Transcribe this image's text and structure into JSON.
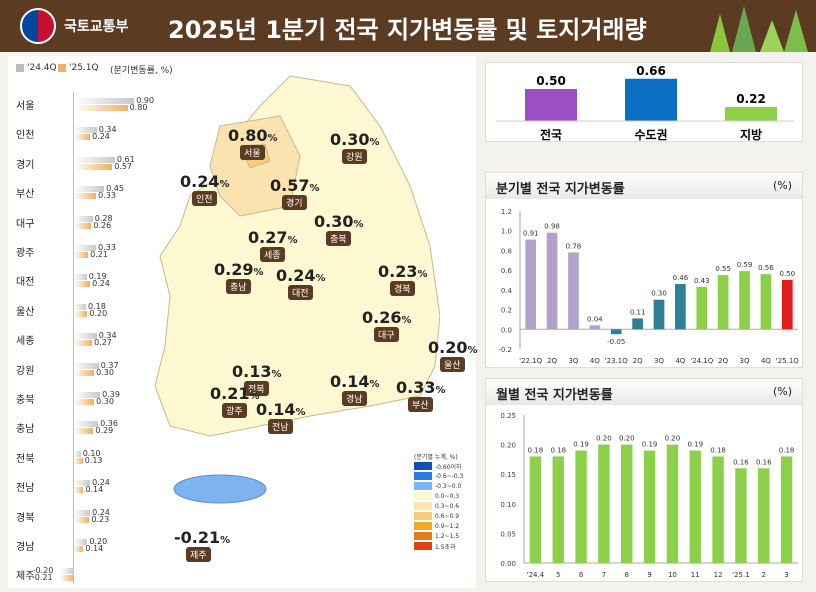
{
  "header": {
    "org": "국토교통부",
    "title": "2025년 1분기 전국 지가변동률 및 토지거래량"
  },
  "left_legend": {
    "series_a": "'24.4Q",
    "series_b": "'25.1Q",
    "unit": "(분기변동률, %)"
  },
  "colors": {
    "series_a": "#c8c8c8",
    "series_b": "#f0b060",
    "purple": "#9b4fc1",
    "blue": "#0a6fc2",
    "green": "#8cd04a",
    "teal": "#2f7f97",
    "red": "#e21b1b",
    "lavender": "#b2a1c9"
  },
  "regions": [
    {
      "name": "서울",
      "a": 0.9,
      "b": 0.8
    },
    {
      "name": "인천",
      "a": 0.34,
      "b": 0.24
    },
    {
      "name": "경기",
      "a": 0.61,
      "b": 0.57
    },
    {
      "name": "부산",
      "a": 0.45,
      "b": 0.33
    },
    {
      "name": "대구",
      "a": 0.28,
      "b": 0.26
    },
    {
      "name": "광주",
      "a": 0.33,
      "b": 0.21
    },
    {
      "name": "대전",
      "a": 0.19,
      "b": 0.24
    },
    {
      "name": "울산",
      "a": 0.18,
      "b": 0.2
    },
    {
      "name": "세종",
      "a": 0.34,
      "b": 0.27
    },
    {
      "name": "강원",
      "a": 0.37,
      "b": 0.3
    },
    {
      "name": "충북",
      "a": 0.39,
      "b": 0.3
    },
    {
      "name": "충남",
      "a": 0.36,
      "b": 0.29
    },
    {
      "name": "전북",
      "a": 0.1,
      "b": 0.13
    },
    {
      "name": "전남",
      "a": 0.24,
      "b": 0.14
    },
    {
      "name": "경북",
      "a": 0.24,
      "b": 0.23
    },
    {
      "name": "경남",
      "a": 0.2,
      "b": 0.14
    },
    {
      "name": "제주",
      "a": -0.2,
      "b": -0.21
    }
  ],
  "map_labels": [
    {
      "region": "서울",
      "value": "0.80",
      "unit": "%"
    },
    {
      "region": "강원",
      "value": "0.30",
      "unit": "%"
    },
    {
      "region": "인천",
      "value": "0.24",
      "unit": "%"
    },
    {
      "region": "경기",
      "value": "0.57",
      "unit": "%"
    },
    {
      "region": "충북",
      "value": "0.30",
      "unit": "%"
    },
    {
      "region": "세종",
      "value": "0.27",
      "unit": "%"
    },
    {
      "region": "충남",
      "value": "0.29",
      "unit": "%"
    },
    {
      "region": "대전",
      "value": "0.24",
      "unit": "%"
    },
    {
      "region": "경북",
      "value": "0.23",
      "unit": "%"
    },
    {
      "region": "대구",
      "value": "0.26",
      "unit": "%"
    },
    {
      "region": "울산",
      "value": "0.20",
      "unit": "%"
    },
    {
      "region": "전북",
      "value": "0.13",
      "unit": "%"
    },
    {
      "region": "경남",
      "value": "0.14",
      "unit": "%"
    },
    {
      "region": "부산",
      "value": "0.33",
      "unit": "%"
    },
    {
      "region": "광주",
      "value": "0.21",
      "unit": "%"
    },
    {
      "region": "전남",
      "value": "0.14",
      "unit": "%"
    },
    {
      "region": "제주",
      "value": "-0.21",
      "unit": "%"
    }
  ],
  "map_legend": {
    "title": "(분기별 누계, %)",
    "items": [
      {
        "label": "-0.60이하",
        "color": "#1450b4"
      },
      {
        "label": "-0.6~-0.3",
        "color": "#2a7be6"
      },
      {
        "label": "-0.3~0.0",
        "color": "#7db3f0"
      },
      {
        "label": "0.0~0.3",
        "color": "#fdf7d2"
      },
      {
        "label": "0.3~0.6",
        "color": "#fbe3b0"
      },
      {
        "label": "0.6~0.9",
        "color": "#f7ca7c"
      },
      {
        "label": "0.9~1.2",
        "color": "#f3a928"
      },
      {
        "label": "1.2~1.5",
        "color": "#e67b1e"
      },
      {
        "label": "1.5초과",
        "color": "#e0401a"
      }
    ]
  },
  "chart_data": [
    {
      "type": "bar",
      "categories": [
        "전국",
        "수도권",
        "지방"
      ],
      "values": [
        0.5,
        0.66,
        0.22
      ],
      "colors": [
        "#9b4fc1",
        "#0a6fc2",
        "#8cd04a"
      ]
    },
    {
      "type": "bar",
      "title": "분기별 전국 지가변동률",
      "unit": "(%)",
      "categories": [
        "'22.1Q",
        "2Q",
        "3Q",
        "4Q",
        "'23.1Q",
        "2Q",
        "3Q",
        "4Q",
        "'24.1Q",
        "2Q",
        "3Q",
        "4Q",
        "'25.1Q"
      ],
      "values": [
        0.91,
        0.98,
        0.78,
        0.04,
        -0.05,
        0.11,
        0.3,
        0.46,
        0.43,
        0.55,
        0.59,
        0.56,
        0.5
      ],
      "labels": [
        "0.91",
        "0.98",
        "0.78",
        "0.04",
        "-0.05",
        "0.11",
        "0.30",
        "0.46",
        "0.43",
        "0.55",
        "0.59",
        "0.56",
        "0.50"
      ],
      "ylim": [
        -0.2,
        1.2
      ],
      "yticks": [
        "-0.2",
        "0.0",
        "0.2",
        "0.4",
        "0.6",
        "0.8",
        "1.0",
        "1.2"
      ],
      "colors": [
        "#b2a1c9",
        "#b2a1c9",
        "#b2a1c9",
        "#b2a1c9",
        "#2f7f97",
        "#2f7f97",
        "#2f7f97",
        "#2f7f97",
        "#8cd04a",
        "#8cd04a",
        "#8cd04a",
        "#8cd04a",
        "#e21b1b"
      ]
    },
    {
      "type": "bar",
      "title": "월별 전국 지가변동률",
      "unit": "(%)",
      "categories": [
        "'24.4",
        "5",
        "6",
        "7",
        "8",
        "9",
        "10",
        "11",
        "12",
        "'25.1",
        "2",
        "3"
      ],
      "values": [
        0.18,
        0.18,
        0.19,
        0.2,
        0.2,
        0.19,
        0.2,
        0.19,
        0.18,
        0.16,
        0.16,
        0.18
      ],
      "labels": [
        "0.18",
        "0.18",
        "0.19",
        "0.20",
        "0.20",
        "0.19",
        "0.20",
        "0.19",
        "0.18",
        "0.16",
        "0.16",
        "0.18"
      ],
      "ylim": [
        0,
        0.25
      ],
      "yticks": [
        "0.00",
        "0.05",
        "0.10",
        "0.15",
        "0.20",
        "0.25"
      ],
      "color": "#8cd04a"
    }
  ]
}
